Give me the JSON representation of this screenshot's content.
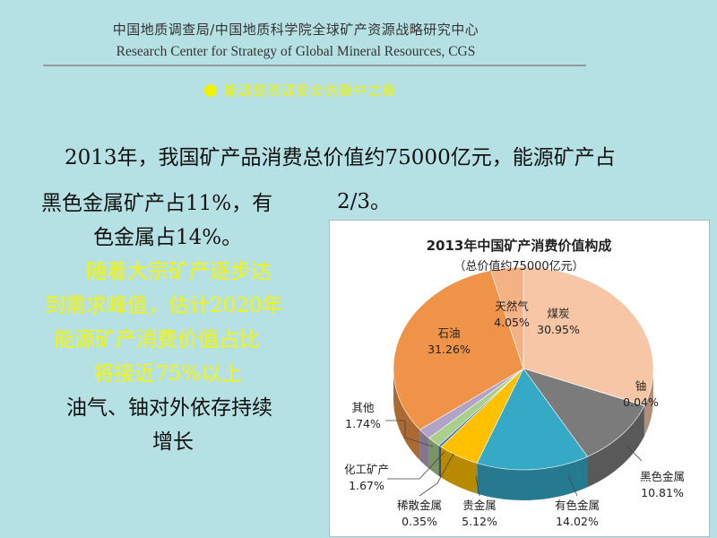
{
  "header": {
    "org_cn": "中国地质调查局/中国地质科学院全球矿产资源战略研究中心",
    "org_en": "Research Center for Strategy of Global Mineral Resources, CGS"
  },
  "subtitle": "能源是资源安全的重中之重",
  "colors": {
    "background": "#b6e1e4",
    "highlight_text": "#f5f500"
  },
  "body": {
    "line1": "2013年，我国矿产品消费总价值约75000亿元，能源矿产占",
    "line2": "2/3。",
    "left_lines": [
      {
        "text": "黑色金属矿产占11%，有",
        "color": "black",
        "indent": 0
      },
      {
        "text": "色金属占14%。",
        "color": "black",
        "indent": 58
      },
      {
        "text": "随着大宗矿产逐步达",
        "color": "yellow",
        "indent": 50
      },
      {
        "text": "到需求峰值，估计2020年",
        "color": "yellow",
        "indent": 4
      },
      {
        "text": "能源矿产消费价值占比",
        "color": "yellow",
        "indent": 14
      },
      {
        "text": "将接近75%以上",
        "color": "yellow",
        "indent": 58
      },
      {
        "text": "油气、铀对外依存持续",
        "color": "black",
        "indent": 28
      },
      {
        "text": "增长",
        "color": "black",
        "indent": 124
      }
    ]
  },
  "chart_data": {
    "type": "pie",
    "title": "2013年中国矿产消费价值构成",
    "subtitle": "（总价值约75000亿元）",
    "slices": [
      {
        "label": "煤炭",
        "value": 30.95,
        "display": "30.95%",
        "color": "#f7c6a6"
      },
      {
        "label": "铀",
        "value": 0.04,
        "display": "0.04%",
        "color": "#cfcfcf"
      },
      {
        "label": "黑色金属",
        "value": 10.81,
        "display": "10.81%",
        "color": "#7b7b7b"
      },
      {
        "label": "有色金属",
        "value": 14.02,
        "display": "14.02%",
        "color": "#35a9c6"
      },
      {
        "label": "贵金属",
        "value": 5.12,
        "display": "5.12%",
        "color": "#ffc000"
      },
      {
        "label": "稀散金属",
        "value": 0.35,
        "display": "0.35%",
        "color": "#3d6fb6"
      },
      {
        "label": "化工矿产",
        "value": 1.67,
        "display": "1.67%",
        "color": "#a9cf8a"
      },
      {
        "label": "其他",
        "value": 1.74,
        "display": "1.74%",
        "color": "#b3a2c7"
      },
      {
        "label": "石油",
        "value": 31.26,
        "display": "31.26%",
        "color": "#ee9348"
      },
      {
        "label": "天然气",
        "value": 4.05,
        "display": "4.05%",
        "color": "#f4b183"
      }
    ]
  }
}
